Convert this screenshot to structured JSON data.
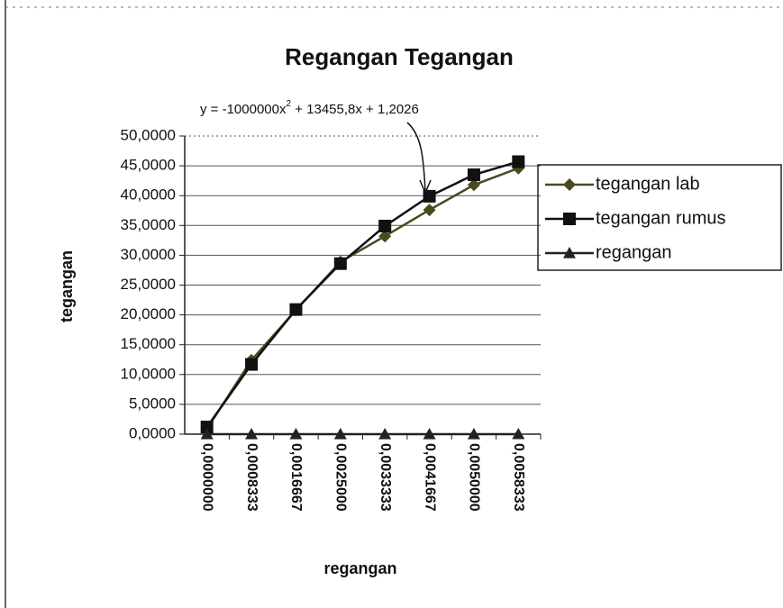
{
  "chart_data": {
    "type": "line",
    "title": "Regangan Tegangan",
    "equation": [
      "y = -1000000x",
      "2",
      " + 13455,8x + 1,2026"
    ],
    "x_label": "regangan",
    "y_label": "tegangan",
    "categories": [
      "0,0000000",
      "0,0008333",
      "0,0016667",
      "0,0025000",
      "0,0033333",
      "0,0041667",
      "0,0050000",
      "0,0058333"
    ],
    "series": [
      {
        "name": "tegangan lab",
        "color": "#4a4a1e",
        "marker": "diamond",
        "values": [
          0.9,
          12.4,
          20.8,
          28.9,
          33.2,
          37.6,
          41.8,
          44.6
        ]
      },
      {
        "name": "tegangan rumus",
        "color": "#111111",
        "marker": "square",
        "values": [
          1.2,
          11.7,
          20.9,
          28.6,
          34.9,
          39.9,
          43.5,
          45.7
        ]
      },
      {
        "name": "regangan",
        "color": "#222222",
        "marker": "triangle",
        "values": [
          0,
          0.0008333,
          0.0016667,
          0.0025,
          0.0033333,
          0.0041667,
          0.005,
          0.0058333
        ]
      }
    ],
    "ylim": [
      0,
      50
    ],
    "yticks": [
      {
        "value": 0,
        "label": "0,0000"
      },
      {
        "value": 5,
        "label": "5,0000"
      },
      {
        "value": 10,
        "label": "10,0000"
      },
      {
        "value": 15,
        "label": "15,0000"
      },
      {
        "value": 20,
        "label": "20,0000"
      },
      {
        "value": 25,
        "label": "25,0000"
      },
      {
        "value": 30,
        "label": "30,0000"
      },
      {
        "value": 35,
        "label": "35,0000"
      },
      {
        "value": 40,
        "label": "40,0000"
      },
      {
        "value": 45,
        "label": "45,0000"
      },
      {
        "value": 50,
        "label": "50,0000"
      }
    ],
    "grid": true,
    "legend": "right"
  }
}
